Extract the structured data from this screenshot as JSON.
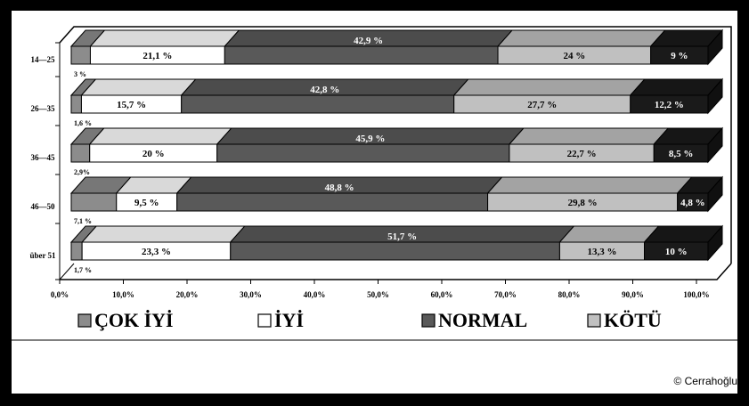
{
  "chart_data": {
    "type": "bar",
    "orientation": "horizontal",
    "stacked": true,
    "categories": [
      "14—25",
      "26—35",
      "36—45",
      "46—50",
      "über 51"
    ],
    "series": [
      {
        "name": "ÇOK İYİ",
        "values": [
          3,
          1.6,
          2.9,
          7.1,
          1.7
        ],
        "labels": [
          "3 %",
          "1,6 %",
          "2,9%",
          "7,1 %",
          "1,7 %"
        ]
      },
      {
        "name": "İYİ",
        "values": [
          21.1,
          15.7,
          20,
          9.5,
          23.3
        ],
        "labels": [
          "21,1 %",
          "15,7 %",
          "20 %",
          "9,5 %",
          "23,3 %"
        ]
      },
      {
        "name": "NORMAL",
        "values": [
          42.9,
          42.8,
          45.9,
          48.8,
          51.7
        ],
        "labels": [
          "42,9 %",
          "42,8 %",
          "45,9 %",
          "48,8 %",
          "51,7 %"
        ]
      },
      {
        "name": "KÖTÜ",
        "values": [
          24,
          27.7,
          22.7,
          29.8,
          13.3
        ],
        "labels": [
          "24 %",
          "27,7 %",
          "22,7 %",
          "29,8 %",
          "13,3 %"
        ]
      },
      {
        "name": "",
        "values": [
          9,
          12.2,
          8.5,
          4.8,
          10
        ],
        "labels": [
          "9 %",
          "12,2 %",
          "8,5 %",
          "4,8 %",
          "10 %"
        ]
      }
    ],
    "xlim": [
      0,
      100
    ],
    "xticks": [
      "0,0%",
      "10,0%",
      "20,0%",
      "30,0%",
      "40,0%",
      "50,0%",
      "60,0%",
      "70,0%",
      "80,0%",
      "90,0%",
      "100,0%"
    ],
    "legend": [
      "ÇOK İYİ",
      "İYİ",
      "NORMAL",
      "KÖTÜ"
    ],
    "legend_position": "bottom",
    "colors": [
      "#8c8c8c",
      "#ffffff",
      "#595959",
      "#c0c0c0",
      "#1a1a1a"
    ],
    "grid": false
  },
  "credit": "© Cerrahoğlu"
}
